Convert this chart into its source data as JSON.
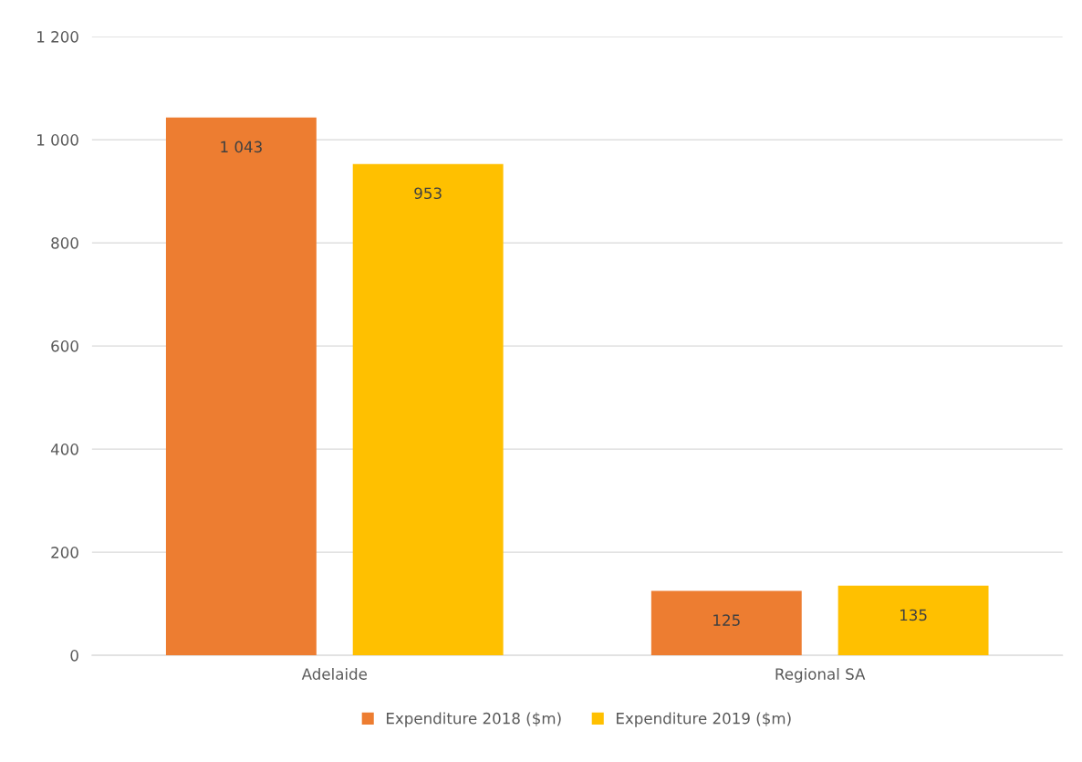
{
  "chart_data": {
    "type": "bar",
    "categories": [
      "Adelaide",
      "Regional SA"
    ],
    "series": [
      {
        "name": "Expenditure 2018 ($m)",
        "color": "#ed7d31",
        "values": [
          1043,
          125
        ],
        "value_labels": [
          "1 043",
          "125"
        ]
      },
      {
        "name": "Expenditure 2019 ($m)",
        "color": "#ffc000",
        "values": [
          953,
          135
        ],
        "value_labels": [
          "953",
          "135"
        ]
      }
    ],
    "ylim": [
      0,
      1200
    ],
    "yticks": [
      0,
      200,
      400,
      600,
      800,
      {
        "value": 1000,
        "label": "1 000"
      },
      {
        "value": 1200,
        "label": "1 200"
      }
    ],
    "grid": "y",
    "legend": "bottom"
  }
}
